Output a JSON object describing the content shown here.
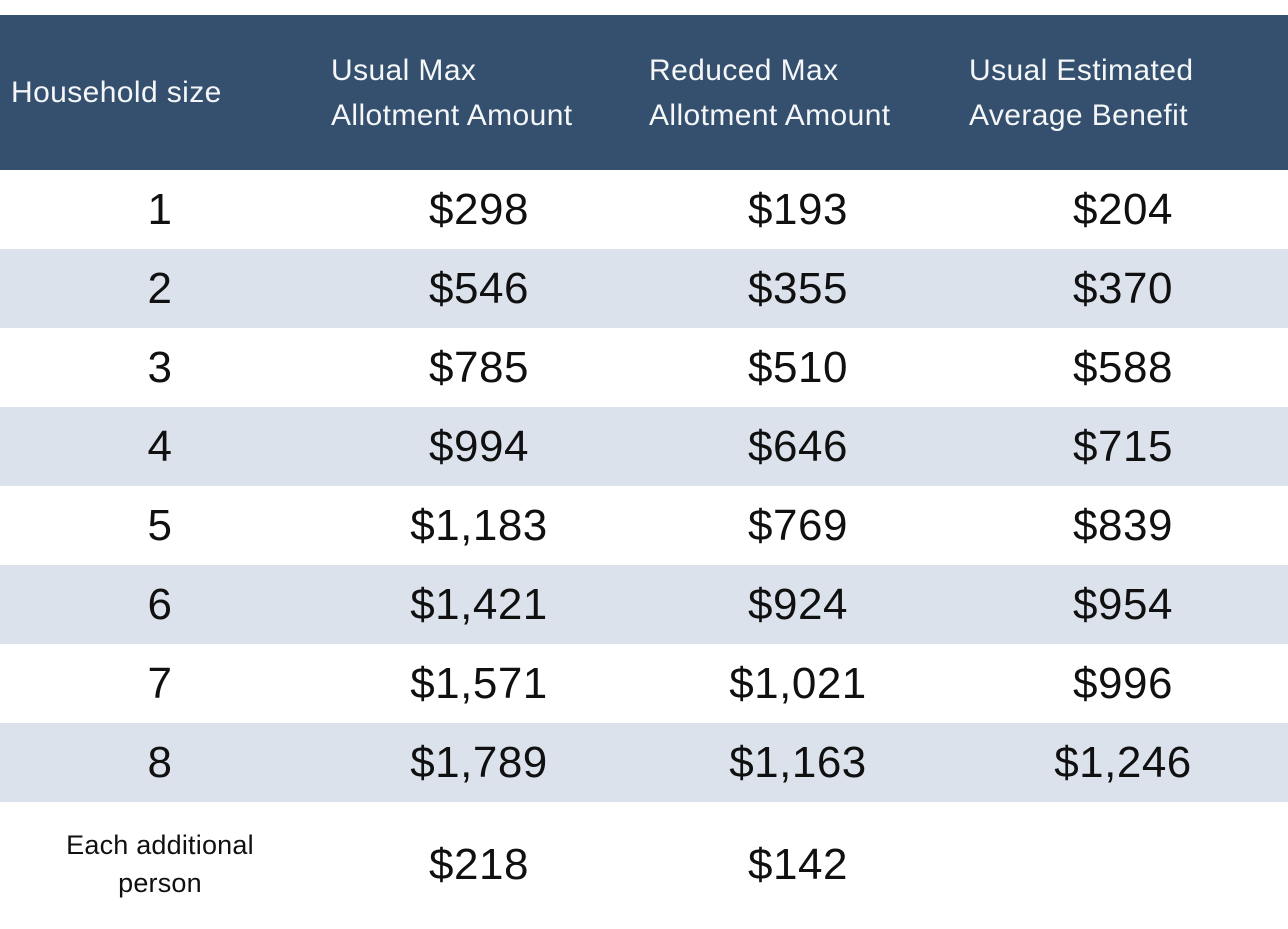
{
  "colors": {
    "header_bg": "#34506e",
    "header_text": "#f4f6f8",
    "stripe_bg": "#dce2ec",
    "row_bg": "#ffffff",
    "data_text": "#101010"
  },
  "table": {
    "header": {
      "household_size": "Household size",
      "usual_max": "Usual Max\nAllotment Amount",
      "reduced_max": "Reduced Max\nAllotment Amount",
      "usual_estimated": "Usual Estimated\nAverage Benefit"
    },
    "rows": [
      {
        "cells": [
          "1",
          "$298",
          "$193",
          "$204"
        ]
      },
      {
        "cells": [
          "2",
          "$546",
          "$355",
          "$370"
        ]
      },
      {
        "cells": [
          "3",
          "$785",
          "$510",
          "$588"
        ]
      },
      {
        "cells": [
          "4",
          "$994",
          "$646",
          "$715"
        ]
      },
      {
        "cells": [
          "5",
          "$1,183",
          "$769",
          "$839"
        ]
      },
      {
        "cells": [
          "6",
          "$1,421",
          "$924",
          "$954"
        ]
      },
      {
        "cells": [
          "7",
          "$1,571",
          "$1,021",
          "$996"
        ]
      },
      {
        "cells": [
          "8",
          "$1,789",
          "$1,163",
          "$1,246"
        ]
      },
      {
        "cells": [
          "Each additional\nperson",
          "$218",
          "$142",
          ""
        ]
      }
    ]
  },
  "chart_data": {
    "type": "table",
    "title": "",
    "columns": [
      "Household size",
      "Usual Max Allotment Amount",
      "Reduced Max Allotment Amount",
      "Usual Estimated Average Benefit"
    ],
    "rows": [
      [
        "1",
        298,
        193,
        204
      ],
      [
        "2",
        546,
        355,
        370
      ],
      [
        "3",
        785,
        510,
        588
      ],
      [
        "4",
        994,
        646,
        715
      ],
      [
        "5",
        1183,
        769,
        839
      ],
      [
        "6",
        1421,
        924,
        954
      ],
      [
        "7",
        1571,
        1021,
        996
      ],
      [
        "8",
        1789,
        1163,
        1246
      ],
      [
        "Each additional person",
        218,
        142,
        null
      ]
    ],
    "units": "USD",
    "layout": {
      "striped_rows": true,
      "header_position": "top",
      "grid": false
    }
  }
}
